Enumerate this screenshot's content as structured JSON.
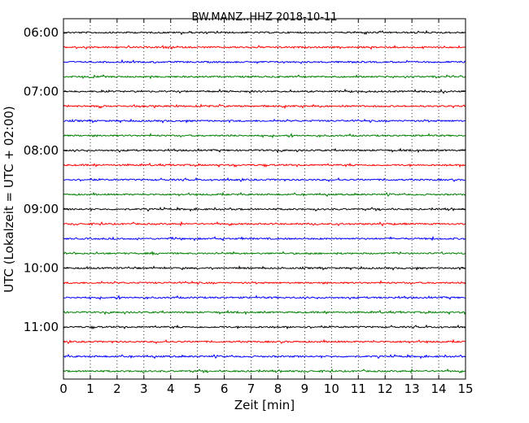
{
  "chart_data": {
    "type": "line",
    "title": "BW.MANZ..HHZ 2018-10-11",
    "xlabel": "Zeit  [min]",
    "ylabel": "UTC (Lokalzeit = UTC + 02:00)",
    "xlim": [
      0,
      15
    ],
    "x_ticks": [
      0,
      1,
      2,
      3,
      4,
      5,
      6,
      7,
      8,
      9,
      10,
      11,
      12,
      13,
      14,
      15
    ],
    "y_tick_labels": [
      "06:00",
      "07:00",
      "08:00",
      "09:00",
      "10:00",
      "11:00"
    ],
    "grid": "vertical dotted",
    "trace_colors": [
      "#000000",
      "#ff0000",
      "#0000ff",
      "#008000"
    ],
    "traces": [
      {
        "start": "06:00",
        "color": "#000000"
      },
      {
        "start": "06:15",
        "color": "#ff0000"
      },
      {
        "start": "06:30",
        "color": "#0000ff"
      },
      {
        "start": "06:45",
        "color": "#008000"
      },
      {
        "start": "07:00",
        "color": "#000000"
      },
      {
        "start": "07:15",
        "color": "#ff0000"
      },
      {
        "start": "07:30",
        "color": "#0000ff"
      },
      {
        "start": "07:45",
        "color": "#008000"
      },
      {
        "start": "08:00",
        "color": "#000000"
      },
      {
        "start": "08:15",
        "color": "#ff0000"
      },
      {
        "start": "08:30",
        "color": "#0000ff"
      },
      {
        "start": "08:45",
        "color": "#008000"
      },
      {
        "start": "09:00",
        "color": "#000000"
      },
      {
        "start": "09:15",
        "color": "#ff0000"
      },
      {
        "start": "09:30",
        "color": "#0000ff"
      },
      {
        "start": "09:45",
        "color": "#008000"
      },
      {
        "start": "10:00",
        "color": "#000000"
      },
      {
        "start": "10:15",
        "color": "#ff0000"
      },
      {
        "start": "10:30",
        "color": "#0000ff"
      },
      {
        "start": "10:45",
        "color": "#008000"
      },
      {
        "start": "11:00",
        "color": "#000000"
      },
      {
        "start": "11:15",
        "color": "#ff0000"
      },
      {
        "start": "11:30",
        "color": "#0000ff"
      },
      {
        "start": "11:45",
        "color": "#008000"
      }
    ]
  }
}
